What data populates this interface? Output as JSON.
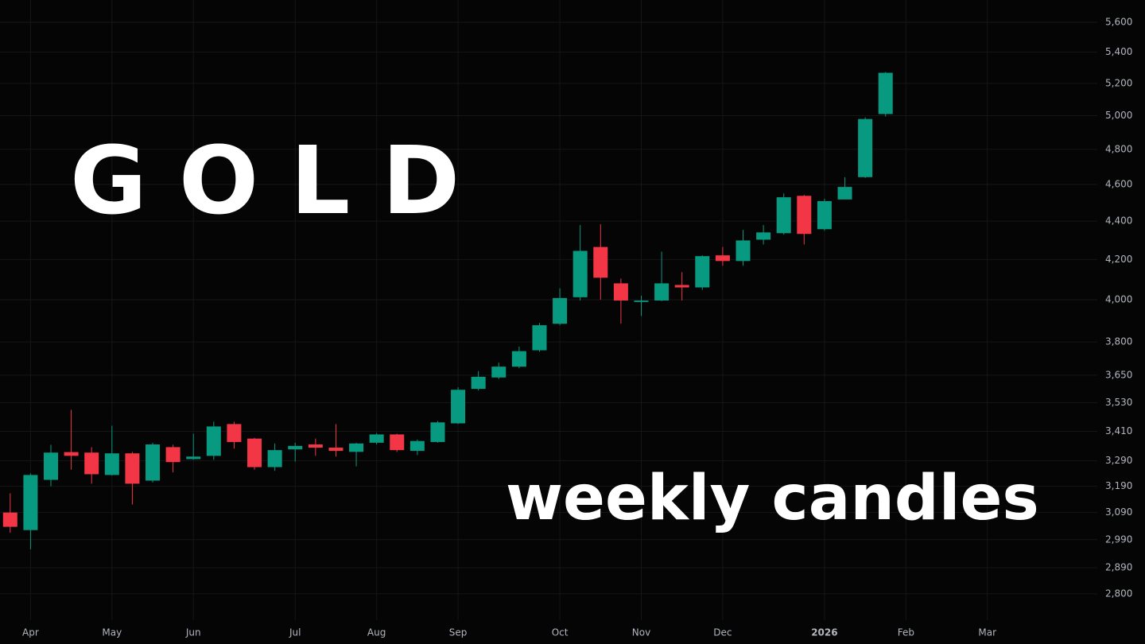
{
  "chart_data": {
    "type": "candlestick",
    "title": "GOLD",
    "subtitle": "weekly candles",
    "x": [
      0,
      1,
      2,
      3,
      4,
      5,
      6,
      7,
      8,
      9,
      10,
      11,
      12,
      13,
      14,
      15,
      16,
      17,
      18,
      19,
      20,
      21,
      22,
      23,
      24,
      25,
      26,
      27,
      28,
      29,
      30,
      31,
      32,
      33,
      34,
      35,
      36,
      37,
      38,
      39,
      40,
      41,
      42,
      43
    ],
    "open": [
      3090,
      3025,
      3215,
      3325,
      3323,
      3234,
      3320,
      3212,
      3345,
      3297,
      3310,
      3440,
      3380,
      3265,
      3336,
      3356,
      3343,
      3326,
      3363,
      3397,
      3330,
      3366,
      3443,
      3590,
      3640,
      3688,
      3762,
      3885,
      4012,
      4264,
      4080,
      3989,
      3996,
      4072,
      4060,
      4221,
      4192,
      4302,
      4336,
      4537,
      4357,
      4517,
      4641,
      5010
    ],
    "high": [
      3163,
      3240,
      3355,
      3500,
      3345,
      3433,
      3326,
      3363,
      3355,
      3400,
      3450,
      3450,
      3383,
      3360,
      3363,
      3380,
      3440,
      3363,
      3403,
      3400,
      3376,
      3453,
      3597,
      3668,
      3706,
      3779,
      3889,
      4056,
      4379,
      4383,
      4104,
      4020,
      4240,
      4136,
      4221,
      4264,
      4353,
      4379,
      4550,
      4542,
      4521,
      4641,
      4990,
      5272
    ],
    "low": [
      3015,
      2955,
      3190,
      3255,
      3200,
      3232,
      3120,
      3205,
      3244,
      3294,
      3294,
      3339,
      3255,
      3250,
      3287,
      3310,
      3307,
      3268,
      3356,
      3326,
      3313,
      3363,
      3440,
      3583,
      3633,
      3681,
      3755,
      3878,
      3996,
      4000,
      3885,
      3922,
      3993,
      3996,
      4048,
      4168,
      4168,
      4277,
      4328,
      4277,
      4349,
      4517,
      4636,
      4995
    ],
    "close": [
      3037,
      3234,
      3323,
      3310,
      3237,
      3320,
      3200,
      3356,
      3285,
      3307,
      3430,
      3366,
      3265,
      3333,
      3350,
      3343,
      3330,
      3360,
      3397,
      3333,
      3370,
      3447,
      3586,
      3643,
      3688,
      3758,
      3878,
      4008,
      4244,
      4108,
      3996,
      3996,
      4080,
      4060,
      4217,
      4192,
      4298,
      4340,
      4529,
      4332,
      4508,
      4586,
      4980,
      5267
    ],
    "up_color": "#089981",
    "down_color": "#f23645",
    "log_scale": true,
    "grid": true,
    "xlim": [
      -0.5,
      53.4
    ],
    "xticks": [
      {
        "value": 1,
        "label": "Apr"
      },
      {
        "value": 5,
        "label": "May"
      },
      {
        "value": 9,
        "label": "Jun"
      },
      {
        "value": 14,
        "label": "Jul"
      },
      {
        "value": 18,
        "label": "Aug"
      },
      {
        "value": 22,
        "label": "Sep"
      },
      {
        "value": 27,
        "label": "Oct"
      },
      {
        "value": 31,
        "label": "Nov"
      },
      {
        "value": 35,
        "label": "Dec"
      },
      {
        "value": 40,
        "label": "2026"
      },
      {
        "value": 44,
        "label": "Feb"
      },
      {
        "value": 48,
        "label": "Mar"
      }
    ],
    "ylim": [
      2712,
      5753
    ],
    "yticks": [
      {
        "value": 2800,
        "label": "2,800"
      },
      {
        "value": 2890,
        "label": "2,890"
      },
      {
        "value": 2990,
        "label": "2,990"
      },
      {
        "value": 3090,
        "label": "3,090"
      },
      {
        "value": 3190,
        "label": "3,190"
      },
      {
        "value": 3290,
        "label": "3,290"
      },
      {
        "value": 3410,
        "label": "3,410"
      },
      {
        "value": 3530,
        "label": "3,530"
      },
      {
        "value": 3650,
        "label": "3,650"
      },
      {
        "value": 3800,
        "label": "3,800"
      },
      {
        "value": 4000,
        "label": "4,000"
      },
      {
        "value": 4200,
        "label": "4,200"
      },
      {
        "value": 4400,
        "label": "4,400"
      },
      {
        "value": 4600,
        "label": "4,600"
      },
      {
        "value": 4800,
        "label": "4,800"
      },
      {
        "value": 5000,
        "label": "5,000"
      },
      {
        "value": 5200,
        "label": "5,200"
      },
      {
        "value": 5400,
        "label": "5,400"
      },
      {
        "value": 5600,
        "label": "5,600"
      }
    ]
  }
}
